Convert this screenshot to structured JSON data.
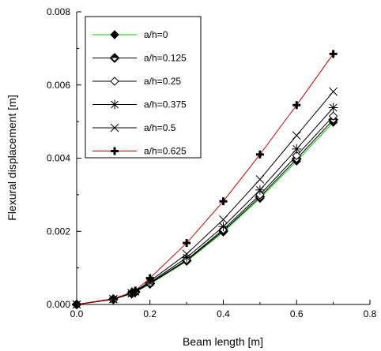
{
  "chart_data": {
    "type": "line",
    "xlabel": "Beam length [m]",
    "ylabel": "Flexural  displacement [m]",
    "xlim": [
      0.0,
      0.8
    ],
    "ylim": [
      0.0,
      0.008
    ],
    "xticks": [
      "0.0",
      "0.2",
      "0.4",
      "0.6",
      "0.8"
    ],
    "yticks": [
      "0.000",
      "0.002",
      "0.004",
      "0.006",
      "0.008"
    ],
    "grid": false,
    "legend_position": "top-left",
    "x": [
      0.0,
      0.1,
      0.15,
      0.16,
      0.2,
      0.3,
      0.4,
      0.5,
      0.6,
      0.7
    ],
    "series": [
      {
        "name": "a/h=0",
        "marker": "diamond-filled",
        "color": "#00cc00",
        "values": [
          0.0,
          0.00014,
          0.0003,
          0.00034,
          0.00056,
          0.00118,
          0.00198,
          0.0029,
          0.00392,
          0.00498
        ]
      },
      {
        "name": "a/h=0.125",
        "marker": "diamond-half",
        "color": "#000000",
        "values": [
          0.0,
          0.00014,
          0.0003,
          0.00034,
          0.00057,
          0.0012,
          0.00201,
          0.00294,
          0.00398,
          0.00505
        ]
      },
      {
        "name": "a/h=0.25",
        "marker": "diamond-open",
        "color": "#000000",
        "values": [
          0.0,
          0.00014,
          0.0003,
          0.00035,
          0.00058,
          0.00122,
          0.00205,
          0.003,
          0.00407,
          0.00515
        ]
      },
      {
        "name": "a/h=0.375",
        "marker": "asterisk",
        "color": "#000000",
        "values": [
          0.0,
          0.00014,
          0.0003,
          0.00035,
          0.0006,
          0.00128,
          0.00213,
          0.00313,
          0.00425,
          0.00538
        ]
      },
      {
        "name": "a/h=0.5",
        "marker": "x",
        "color": "#000000",
        "values": [
          0.0,
          0.00015,
          0.00031,
          0.00036,
          0.00064,
          0.00138,
          0.00232,
          0.00342,
          0.00462,
          0.00582
        ]
      },
      {
        "name": "a/h=0.625",
        "marker": "plus-bold",
        "color": "#cc0000",
        "values": [
          0.0,
          0.00016,
          0.00033,
          0.00038,
          0.00072,
          0.00168,
          0.00282,
          0.0041,
          0.00545,
          0.00685
        ]
      }
    ]
  }
}
